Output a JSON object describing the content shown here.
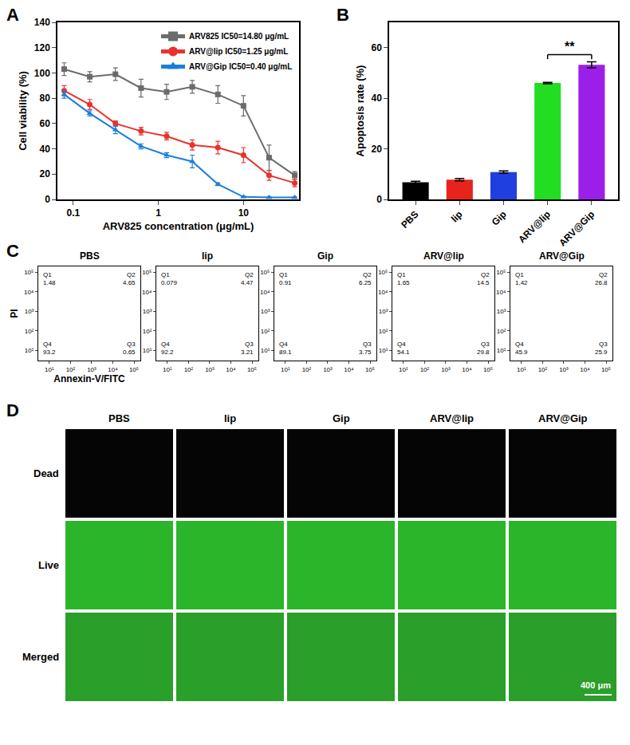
{
  "chart_data": [
    {
      "panel": "A",
      "type": "line",
      "log": "x",
      "x_label": "ARV825 concentration (μg/mL)",
      "y_label": "Cell viability (%)",
      "x": [
        0.078,
        0.156,
        0.3125,
        0.625,
        1.25,
        2.5,
        5,
        10,
        20,
        40
      ],
      "series": [
        {
          "name": "ARV825 IC50=14.80 μg/mL",
          "color": "#6b6b6b",
          "marker": "square",
          "values": [
            103,
            97,
            99,
            88,
            85,
            89,
            83,
            74,
            33,
            19
          ],
          "errors": [
            5,
            4,
            5,
            7,
            6,
            5,
            7,
            8,
            10,
            3
          ]
        },
        {
          "name": "ARV@lip IC50=1.25 μg/mL",
          "color": "#e8322d",
          "marker": "circle",
          "values": [
            86,
            75,
            60,
            54,
            50,
            43,
            41,
            35,
            19,
            13
          ],
          "errors": [
            4,
            4,
            2,
            3,
            3,
            4,
            5,
            6,
            4,
            3
          ]
        },
        {
          "name": "ARV@Gip IC50=0.40 μg/mL",
          "color": "#1a7fd9",
          "marker": "triangle",
          "values": [
            83,
            68,
            55,
            42,
            35,
            30,
            12,
            2,
            1.5,
            1.5
          ],
          "errors": [
            3,
            2,
            3,
            2,
            2,
            5,
            1,
            0.5,
            0.5,
            0.5
          ]
        }
      ],
      "xlim": [
        0.065,
        45
      ],
      "xticks": [
        0.1,
        1,
        10
      ],
      "ylim": [
        0,
        140
      ],
      "yticks": [
        0,
        20,
        40,
        60,
        80,
        100,
        120,
        140
      ],
      "legend": "upper right"
    },
    {
      "panel": "B",
      "type": "bar",
      "y_label": "Apoptosis rate (%)",
      "categories": [
        "PBS",
        "lip",
        "Gip",
        "ARV@lip",
        "ARV@Gip"
      ],
      "values": [
        6.8,
        7.8,
        10.8,
        46,
        53.2
      ],
      "errors": [
        0.4,
        0.5,
        0.5,
        0.3,
        1.2
      ],
      "colors": [
        "#000000",
        "#e8231c",
        "#1f3fe0",
        "#22dd22",
        "#9b1fe8"
      ],
      "ylim": [
        0,
        70
      ],
      "yticks": [
        0,
        20,
        40,
        60
      ],
      "annotations": [
        {
          "text": "**",
          "between": [
            "ARV@lip",
            "ARV@Gip"
          ]
        }
      ]
    },
    {
      "panel": "C",
      "type": "quadrant",
      "log": true,
      "x_label": "Annexin-V/FITC",
      "y_label": "PI",
      "xlim": [
        3,
        200000
      ],
      "ylim": [
        3,
        200000
      ],
      "xticks": [
        {
          "value": 10,
          "label": "10¹"
        },
        {
          "value": 100,
          "label": "10²"
        },
        {
          "value": 1000,
          "label": "10³"
        },
        {
          "value": 10000,
          "label": "10⁴"
        },
        {
          "value": 100000,
          "label": "10⁵"
        }
      ],
      "yticks": [
        {
          "value": 10,
          "label": "10¹"
        },
        {
          "value": 100,
          "label": "10²"
        },
        {
          "value": 1000,
          "label": "10³"
        },
        {
          "value": 10000,
          "label": "10⁴"
        },
        {
          "value": 100000,
          "label": "10⁵"
        }
      ],
      "gate": {
        "x": 250,
        "y": 250
      },
      "panels": [
        {
          "title": "PBS",
          "quadrants": [
            {
              "label": "Q1",
              "value": 1.48
            },
            {
              "label": "Q2",
              "value": 4.65
            },
            {
              "label": "Q3",
              "value": 0.65
            },
            {
              "label": "Q4",
              "value": 93.2
            }
          ]
        },
        {
          "title": "lip",
          "quadrants": [
            {
              "label": "Q1",
              "value": 0.079
            },
            {
              "label": "Q2",
              "value": 4.47
            },
            {
              "label": "Q3",
              "value": 3.21
            },
            {
              "label": "Q4",
              "value": 92.2
            }
          ]
        },
        {
          "title": "Gip",
          "quadrants": [
            {
              "label": "Q1",
              "value": 0.91
            },
            {
              "label": "Q2",
              "value": 6.25
            },
            {
              "label": "Q3",
              "value": 3.75
            },
            {
              "label": "Q4",
              "value": 89.1
            }
          ]
        },
        {
          "title": "ARV@lip",
          "quadrants": [
            {
              "label": "Q1",
              "value": 1.65
            },
            {
              "label": "Q2",
              "value": 14.5
            },
            {
              "label": "Q3",
              "value": 29.8
            },
            {
              "label": "Q4",
              "value": 54.1
            }
          ]
        },
        {
          "title": "ARV@Gip",
          "quadrants": [
            {
              "label": "Q1",
              "value": 1.42
            },
            {
              "label": "Q2",
              "value": 26.8
            },
            {
              "label": "Q3",
              "value": 25.9
            },
            {
              "label": "Q4",
              "value": 45.9
            }
          ]
        }
      ]
    }
  ],
  "image_grid": {
    "panel": "D",
    "columns": [
      "PBS",
      "lip",
      "Gip",
      "ARV@lip",
      "ARV@Gip"
    ],
    "rows": [
      "Dead",
      "Live",
      "Merged"
    ],
    "scale_bar": "400 μm"
  }
}
